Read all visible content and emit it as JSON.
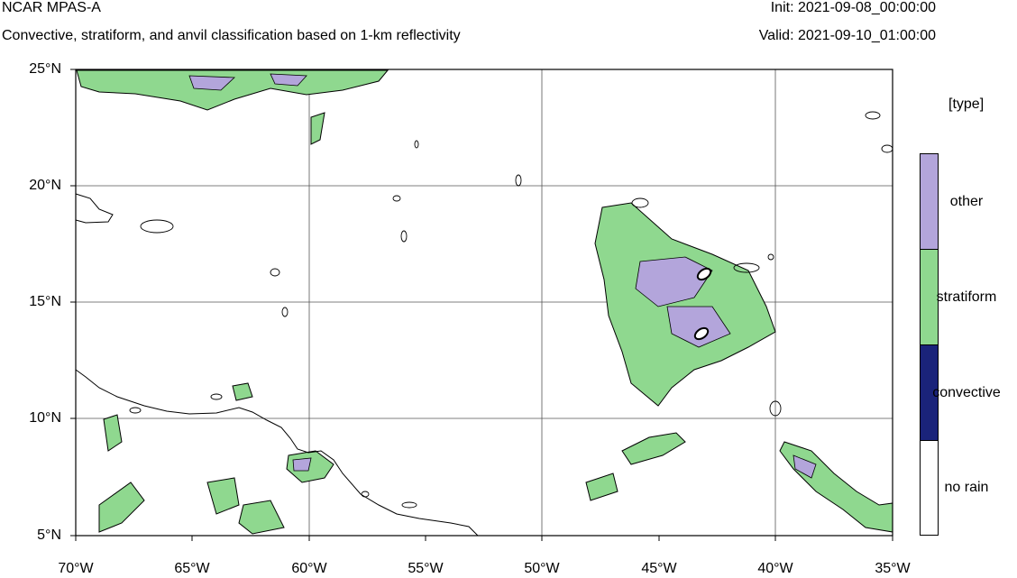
{
  "header": {
    "app_title": "NCAR MPAS-A",
    "subtitle": "Convective, stratiform, and anvil classification based on 1-km reflectivity",
    "init": "Init: 2021-09-08_00:00:00",
    "valid": "Valid: 2021-09-10_01:00:00"
  },
  "map": {
    "lat_labels": [
      "25°N",
      "20°N",
      "15°N",
      "10°N",
      "5°N"
    ],
    "lon_labels": [
      "70°W",
      "65°W",
      "60°W",
      "55°W",
      "50°W",
      "45°W",
      "40°W",
      "35°W"
    ],
    "extent": {
      "lon_min": -70,
      "lon_max": -35,
      "lat_min": 5,
      "lat_max": 25
    },
    "gridlines": true
  },
  "legend": {
    "title": "[type]",
    "entries": [
      {
        "label": "other",
        "color": "#b3a5db"
      },
      {
        "label": "stratiform",
        "color": "#8fd88f"
      },
      {
        "label": "convective",
        "color": "#1a237a"
      },
      {
        "label": "no rain",
        "color": "#ffffff"
      }
    ]
  }
}
